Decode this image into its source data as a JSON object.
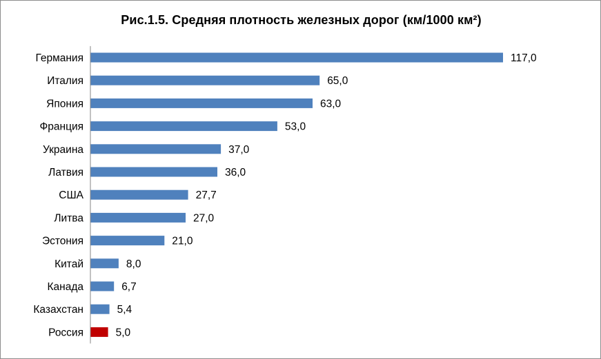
{
  "chart_data": {
    "type": "bar",
    "orientation": "horizontal",
    "title": "Рис.1.5. Средняя плотность железных дорог (км/1000 км²)",
    "xlabel": "",
    "ylabel": "",
    "categories": [
      "Германия",
      "Италия",
      "Япония",
      "Франция",
      "Украина",
      "Латвия",
      "США",
      "Литва",
      "Эстония",
      "Китай",
      "Канада",
      "Казахстан",
      "Россия"
    ],
    "values": [
      117.0,
      65.0,
      63.0,
      53.0,
      37.0,
      36.0,
      27.7,
      27.0,
      21.0,
      8.0,
      6.7,
      5.4,
      5.0
    ],
    "value_labels": [
      "117,0",
      "65,0",
      "63,0",
      "53,0",
      "37,0",
      "36,0",
      "27,7",
      "27,0",
      "21,0",
      "8,0",
      "6,7",
      "5,4",
      "5,0"
    ],
    "xlim": [
      0,
      117
    ],
    "grid": false,
    "legend": "none",
    "colors": {
      "bar": "#4f81bd",
      "highlight": "#c00000",
      "highlight_category": "Россия",
      "axis": "#868686"
    }
  }
}
